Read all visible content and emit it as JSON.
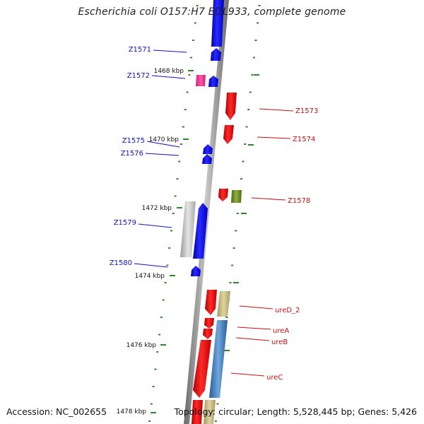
{
  "title": "Escherichia coli O157:H7 EDL933, complete genome",
  "footer": {
    "accession": "Accession: NC_002655",
    "summary": "Topology: circular; Length: 5,528,445 bp; Genes: 5,426"
  },
  "colors": {
    "backbone": "#9a9a9a",
    "forward_gene": "#1010ee",
    "reverse_gene": "#ee1010",
    "pink_gene": "#ee3399",
    "grey_gene": "#bbbbbb",
    "olive_gene": "#6b8e23",
    "khaki_gene": "#c8bc80",
    "steel_gene": "#4a86c8",
    "tick_dots": "#2a8a2a",
    "left_label": "#1010cc",
    "right_label": "#cc1010"
  },
  "kbp_ticks": [
    {
      "label": "1468 kbp",
      "pos": 1468
    },
    {
      "label": "1470 kbp",
      "pos": 1470
    },
    {
      "label": "1472 kbp",
      "pos": 1472
    },
    {
      "label": "1474 kbp",
      "pos": 1474
    },
    {
      "label": "1476 kbp",
      "pos": 1476
    },
    {
      "label": "1478 kbp",
      "pos": 1478
    }
  ],
  "genes_left": [
    {
      "label": "Z1571"
    },
    {
      "label": "Z1572"
    },
    {
      "label": "Z1575"
    },
    {
      "label": "Z1576"
    },
    {
      "label": "Z1579"
    },
    {
      "label": "Z1580"
    }
  ],
  "genes_right": [
    {
      "label": "Z1573"
    },
    {
      "label": "Z1574"
    },
    {
      "label": "Z1578"
    },
    {
      "label": "ureD_2"
    },
    {
      "label": "ureA"
    },
    {
      "label": "ureB"
    },
    {
      "label": "ureC"
    }
  ]
}
